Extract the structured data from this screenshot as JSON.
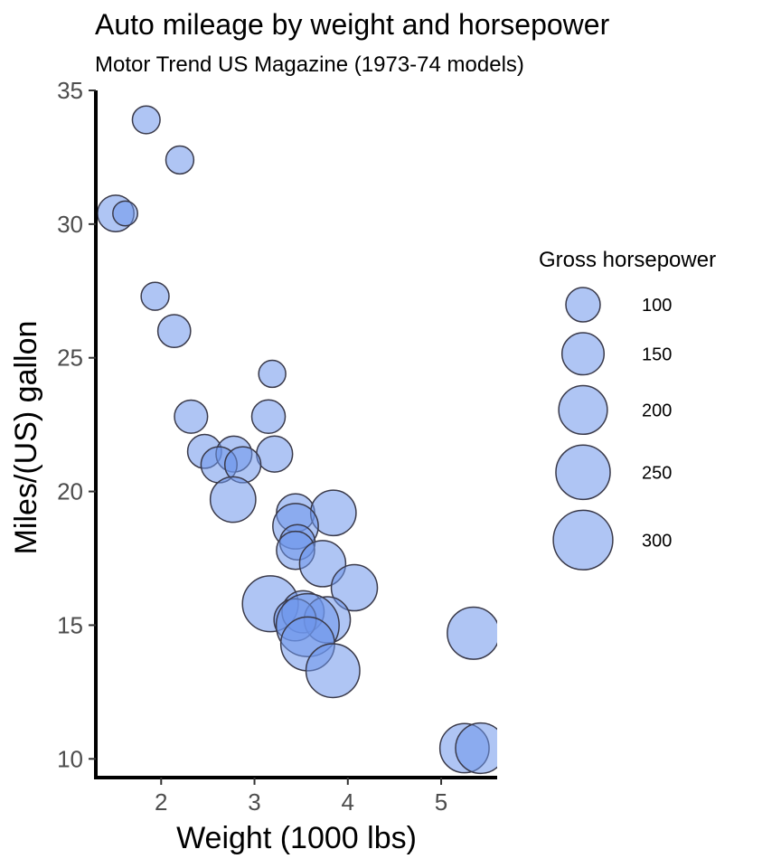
{
  "chart_data": {
    "type": "scatter",
    "title": "Auto mileage by weight and horsepower",
    "subtitle": "Motor Trend US Magazine (1973-74 models)",
    "xlabel": "Weight (1000 lbs)",
    "ylabel": "Miles/(US) gallon",
    "xlim": [
      1.3,
      5.6
    ],
    "ylim": [
      9.3,
      35
    ],
    "x_ticks": [
      2,
      3,
      4,
      5
    ],
    "y_ticks": [
      10,
      15,
      20,
      25,
      30,
      35
    ],
    "grid": false,
    "legend": {
      "title": "Gross horsepower",
      "position": "right",
      "values": [
        100,
        150,
        200,
        250,
        300
      ]
    },
    "colors": {
      "fill": "#6d96eb",
      "stroke": "#3a3a4a",
      "axis": "#000000"
    },
    "point_style": {
      "fill_opacity": 0.55
    },
    "series": [
      {
        "points": [
          {
            "x": 1.84,
            "y": 33.9,
            "size": 65
          },
          {
            "x": 2.2,
            "y": 32.4,
            "size": 66
          },
          {
            "x": 1.513,
            "y": 30.4,
            "size": 113
          },
          {
            "x": 1.615,
            "y": 30.4,
            "size": 52
          },
          {
            "x": 1.935,
            "y": 27.3,
            "size": 66
          },
          {
            "x": 2.14,
            "y": 26.0,
            "size": 91
          },
          {
            "x": 3.19,
            "y": 24.4,
            "size": 62
          },
          {
            "x": 2.32,
            "y": 22.8,
            "size": 93
          },
          {
            "x": 3.15,
            "y": 22.8,
            "size": 95
          },
          {
            "x": 2.465,
            "y": 21.5,
            "size": 97
          },
          {
            "x": 3.215,
            "y": 21.4,
            "size": 110
          },
          {
            "x": 2.78,
            "y": 21.4,
            "size": 109
          },
          {
            "x": 2.62,
            "y": 21.0,
            "size": 110
          },
          {
            "x": 2.875,
            "y": 21.0,
            "size": 110
          },
          {
            "x": 2.77,
            "y": 19.7,
            "size": 175
          },
          {
            "x": 3.44,
            "y": 19.2,
            "size": 123
          },
          {
            "x": 3.845,
            "y": 19.2,
            "size": 175
          },
          {
            "x": 3.44,
            "y": 18.7,
            "size": 175
          },
          {
            "x": 3.46,
            "y": 18.1,
            "size": 105
          },
          {
            "x": 3.44,
            "y": 17.8,
            "size": 123
          },
          {
            "x": 3.73,
            "y": 17.3,
            "size": 180
          },
          {
            "x": 4.07,
            "y": 16.4,
            "size": 180
          },
          {
            "x": 3.17,
            "y": 15.8,
            "size": 264
          },
          {
            "x": 3.52,
            "y": 15.5,
            "size": 150
          },
          {
            "x": 3.78,
            "y": 15.2,
            "size": 180
          },
          {
            "x": 3.435,
            "y": 15.2,
            "size": 150
          },
          {
            "x": 3.57,
            "y": 15.0,
            "size": 335
          },
          {
            "x": 5.345,
            "y": 14.7,
            "size": 230
          },
          {
            "x": 3.57,
            "y": 14.3,
            "size": 245
          },
          {
            "x": 3.84,
            "y": 13.3,
            "size": 245
          },
          {
            "x": 5.25,
            "y": 10.4,
            "size": 205
          },
          {
            "x": 5.424,
            "y": 10.4,
            "size": 215
          }
        ]
      }
    ]
  }
}
